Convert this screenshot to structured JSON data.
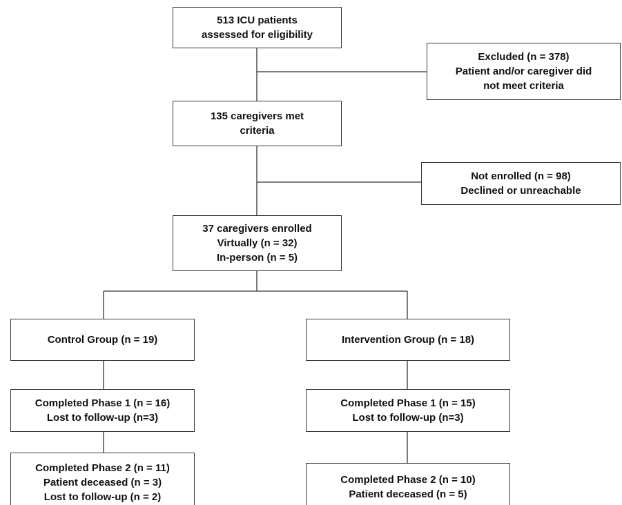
{
  "nodes": [
    {
      "lines": [
        "513 ICU patients",
        "assessed for eligibility"
      ]
    },
    {
      "lines": [
        "Excluded (n = 378)",
        "Patient and/or caregiver did",
        "not meet criteria"
      ]
    },
    {
      "lines": [
        "135 caregivers met",
        "criteria"
      ]
    },
    {
      "lines": [
        "Not enrolled (n = 98)",
        "Declined or unreachable"
      ]
    },
    {
      "lines": [
        "37 caregivers enrolled",
        "Virtually (n = 32)",
        "In-person (n = 5)"
      ]
    },
    {
      "lines": [
        "Control Group (n = 19)"
      ]
    },
    {
      "lines": [
        "Intervention Group (n = 18)"
      ]
    },
    {
      "lines": [
        "Completed Phase 1 (n = 16)",
        "Lost to follow-up (n=3)"
      ]
    },
    {
      "lines": [
        "Completed Phase 1 (n = 15)",
        "Lost to follow-up (n=3)"
      ]
    },
    {
      "lines": [
        "Completed Phase 2 (n = 11)",
        "Patient deceased (n = 3)",
        "Lost to follow-up (n = 2)"
      ]
    },
    {
      "lines": [
        "Completed Phase 2 (n = 10)",
        "Patient deceased (n = 5)"
      ]
    }
  ]
}
